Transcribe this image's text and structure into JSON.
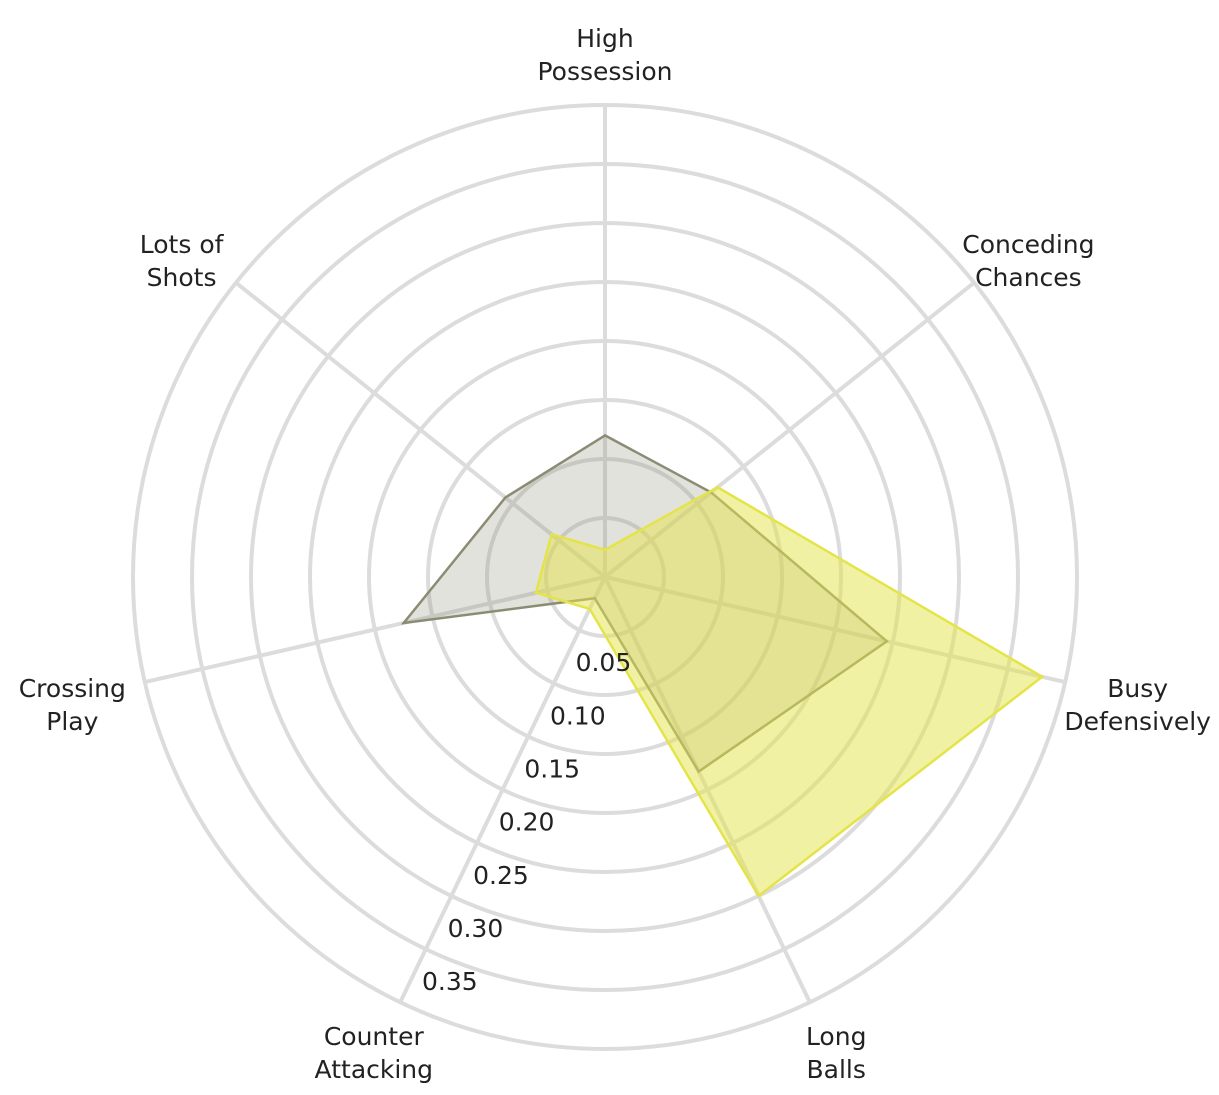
{
  "chart_data": {
    "type": "radar",
    "categories": [
      "High\nPossession",
      "Conceding\nChances",
      "Busy\nDefensively",
      "Long\nBalls",
      "Counter\nAttacking",
      "Crossing\nPlay",
      "Lots of\nShots"
    ],
    "series": [
      {
        "color": "#8c8c74",
        "values": [
          0.12,
          0.115,
          0.245,
          0.183,
          0.02,
          0.175,
          0.108
        ]
      },
      {
        "color": "#e4e44a",
        "values": [
          0.023,
          0.122,
          0.38,
          0.3,
          0.03,
          0.06,
          0.058
        ]
      }
    ],
    "ylim": [
      0,
      0.4
    ],
    "yticks": [
      0.05,
      {
        "value": 0.1,
        "label": "0.10"
      },
      0.15,
      {
        "value": 0.2,
        "label": "0.20"
      },
      0.25,
      {
        "value": 0.3,
        "label": "0.30"
      },
      0.35
    ],
    "grid": true
  }
}
